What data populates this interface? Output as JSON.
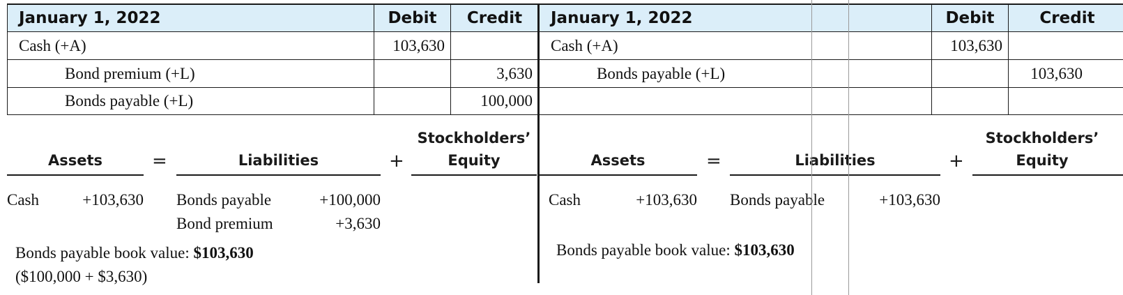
{
  "left": {
    "journal": {
      "date_header": "January 1, 2022",
      "debit_header": "Debit",
      "credit_header": "Credit",
      "rows": [
        {
          "account": "Cash (+A)",
          "debit": "103,630",
          "credit": ""
        },
        {
          "account": "Bond premium (+L)",
          "debit": "",
          "credit": "3,630"
        },
        {
          "account": "Bonds payable (+L)",
          "debit": "",
          "credit": "100,000"
        }
      ]
    },
    "equation": {
      "assets": "Assets",
      "equals": "=",
      "liabilities": "Liabilities",
      "plus": "+",
      "equity_line1": "Stockholders’",
      "equity_line2": "Equity",
      "asset_items": [
        {
          "name": "Cash",
          "value": "+103,630"
        }
      ],
      "liability_items": [
        {
          "name": "Bonds payable",
          "value": "+100,000"
        },
        {
          "name": "Bond premium",
          "value": "+3,630"
        }
      ]
    },
    "book_value_label": "Bonds payable book value: ",
    "book_value_amount": "$103,630",
    "book_value_note": "($100,000 + $3,630)"
  },
  "right": {
    "journal": {
      "date_header": "January 1, 2022",
      "debit_header": "Debit",
      "credit_header": "Credit",
      "rows": [
        {
          "account": "Cash (+A)",
          "debit": "103,630",
          "credit": ""
        },
        {
          "account": "Bonds payable (+L)",
          "debit": "",
          "credit": "103,630"
        },
        {
          "account": "",
          "debit": "",
          "credit": ""
        }
      ]
    },
    "equation": {
      "assets": "Assets",
      "equals": "=",
      "liabilities": "Liabilities",
      "plus": "+",
      "equity_line1": "Stockholders’",
      "equity_line2": "Equity",
      "asset_items": [
        {
          "name": "Cash",
          "value": "+103,630"
        }
      ],
      "liability_items": [
        {
          "name": "Bonds payable",
          "value": "+103,630"
        }
      ]
    },
    "book_value_label": "Bonds payable book value: ",
    "book_value_amount": "$103,630"
  },
  "colors": {
    "header_bg": "#dbeef9",
    "rule": "#1a1a1a",
    "guide": "#9a9a9a"
  }
}
